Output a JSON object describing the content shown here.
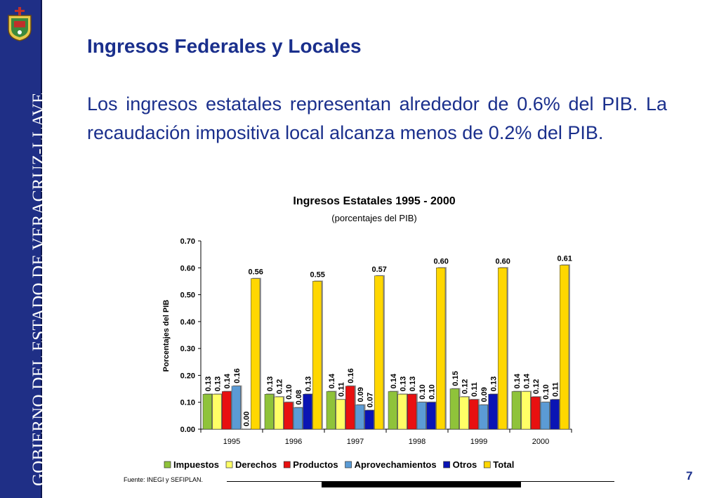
{
  "sidebar": {
    "text": "GOBIERNO DEL ESTADO DE VERACRUZ-LLAVE",
    "color": "#1f2f86"
  },
  "slide": {
    "title": "Ingresos Federales y Locales",
    "body": "Los ingresos estatales representan alrededor de 0.6% del PIB. La recaudación impositiva local alcanza menos de 0.2% del PIB.",
    "source": "Fuente: INEGI y SEFIPLAN.",
    "page_number": "7"
  },
  "chart_data": {
    "type": "bar",
    "title": "Ingresos Estatales 1995 - 2000",
    "subtitle": "(porcentajes del PIB)",
    "xlabel": "",
    "ylabel": "Porcentajes del PIB",
    "categories": [
      "1995",
      "1996",
      "1997",
      "1998",
      "1999",
      "2000"
    ],
    "ylim": [
      0,
      0.7
    ],
    "yticks": [
      "0.00",
      "0.10",
      "0.20",
      "0.30",
      "0.40",
      "0.50",
      "0.60",
      "0.70"
    ],
    "grid": false,
    "legend_position": "bottom",
    "series": [
      {
        "name": "Impuestos",
        "color": "#8fc33a",
        "values": [
          0.13,
          0.13,
          0.14,
          0.14,
          0.15,
          0.14
        ],
        "labels": [
          "0.13",
          "0.13",
          "0.14",
          "0.14",
          "0.15",
          "0.14"
        ]
      },
      {
        "name": "Derechos",
        "color": "#ffff66",
        "values": [
          0.13,
          0.12,
          0.11,
          0.13,
          0.12,
          0.14
        ],
        "labels": [
          "0.13",
          "0.12",
          "0.11",
          "0.13",
          "0.12",
          "0.14"
        ]
      },
      {
        "name": "Productos",
        "color": "#e81010",
        "values": [
          0.14,
          0.1,
          0.16,
          0.13,
          0.11,
          0.12
        ],
        "labels": [
          "0.14",
          "0.10",
          "0.16",
          "0.13",
          "0.11",
          "0.12"
        ]
      },
      {
        "name": "Aprovechamientos",
        "color": "#5b9bd5",
        "values": [
          0.16,
          0.08,
          0.09,
          0.1,
          0.09,
          0.1
        ],
        "labels": [
          "0.16",
          "0.08",
          "0.09",
          "0.10",
          "0.09",
          "0.10"
        ]
      },
      {
        "name": "Otros",
        "color": "#0a14b4",
        "values": [
          0.0,
          0.13,
          0.07,
          0.1,
          0.13,
          0.11
        ],
        "labels": [
          "0.00",
          "0.13",
          "0.07",
          "0.10",
          "0.13",
          "0.11"
        ]
      },
      {
        "name": "Total",
        "color": "#ffd700",
        "values": [
          0.56,
          0.55,
          0.57,
          0.6,
          0.6,
          0.61
        ],
        "labels": [
          "0.56",
          "0.55",
          "0.57",
          "0.60",
          "0.60",
          "0.61"
        ]
      }
    ]
  }
}
